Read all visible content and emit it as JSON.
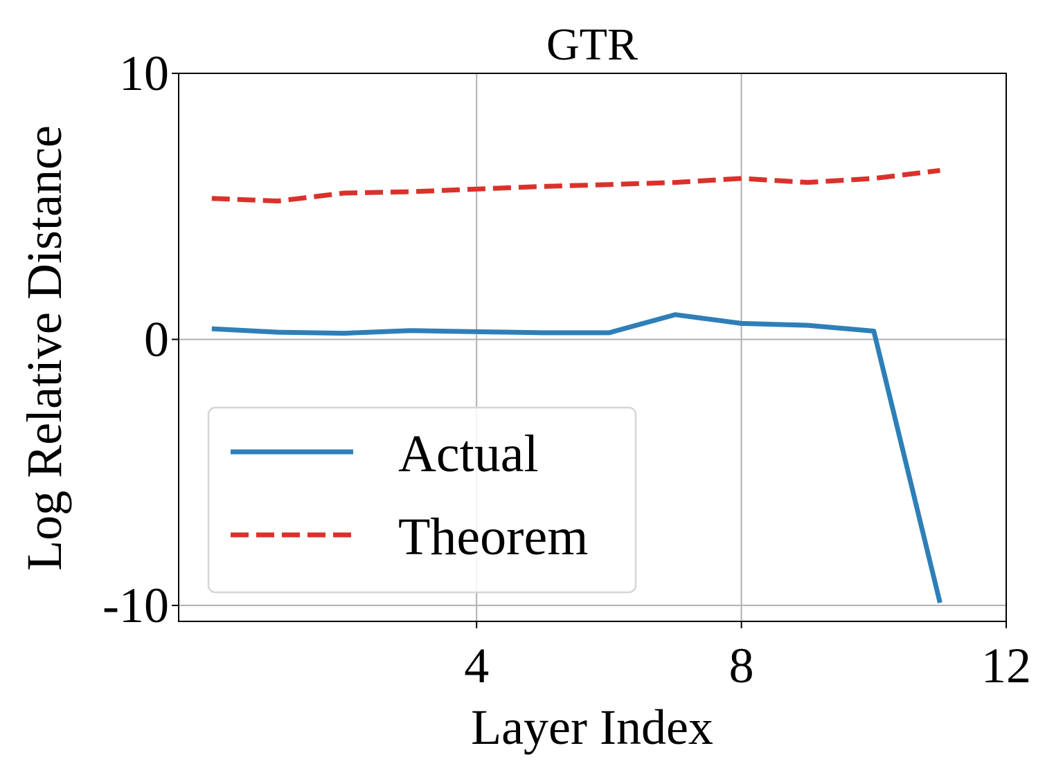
{
  "chart_data": {
    "type": "line",
    "title": "GTR",
    "xlabel": "Layer Index",
    "ylabel": "Log Relative Distance",
    "xlim": [
      -0.5,
      12
    ],
    "ylim": [
      -10.6,
      10
    ],
    "xticks": [
      4,
      8,
      12
    ],
    "xtick_labels": [
      "4",
      "8",
      "12"
    ],
    "yticks": [
      -10,
      0,
      10
    ],
    "ytick_labels": [
      "-10",
      "0",
      "10"
    ],
    "grid": true,
    "legend_position": "lower-left",
    "x": [
      0,
      1,
      2,
      3,
      4,
      5,
      6,
      7,
      8,
      9,
      10,
      11
    ],
    "series": [
      {
        "name": "Actual",
        "style": "solid",
        "color": "#2e7fb8",
        "values": [
          0.4,
          0.27,
          0.23,
          0.33,
          0.29,
          0.25,
          0.25,
          0.93,
          0.6,
          0.53,
          0.31,
          -9.9
        ]
      },
      {
        "name": "Theorem",
        "style": "dashed",
        "color": "#d9322b",
        "values": [
          5.3,
          5.2,
          5.5,
          5.55,
          5.65,
          5.75,
          5.82,
          5.9,
          6.05,
          5.9,
          6.05,
          6.35
        ]
      }
    ]
  }
}
